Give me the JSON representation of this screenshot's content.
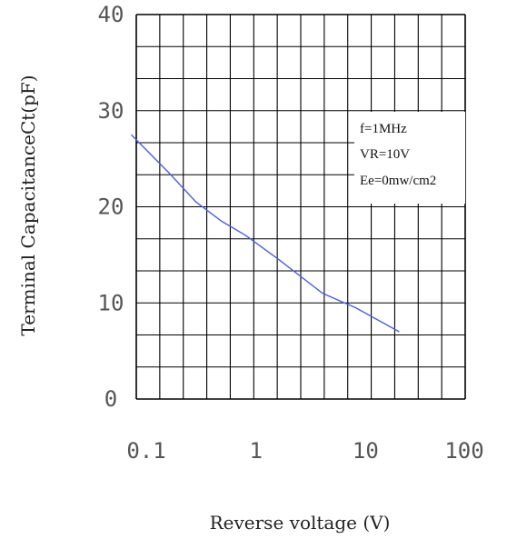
{
  "chart_data": {
    "type": "line",
    "xscale": "log",
    "xlim": [
      0.1,
      100
    ],
    "ylim": [
      0,
      40
    ],
    "grid": true,
    "xlabel": "Reverse voltage (V)",
    "ylabel": "Terminal CapacitanceCt(pF)",
    "x_ticks": [
      "0.1",
      "1",
      "10",
      "100"
    ],
    "y_ticks": [
      "0",
      "10",
      "20",
      "30",
      "40"
    ],
    "annotation": [
      "f=1MHz",
      "VR=10V",
      "Ee=0mw/cm2"
    ],
    "series": [
      {
        "color": "#4a5ee8",
        "x": [
          0.09,
          0.2,
          0.35,
          0.6,
          1,
          2,
          5,
          10,
          25
        ],
        "y": [
          27.5,
          23.5,
          20.5,
          18.5,
          17,
          14.5,
          11,
          9.5,
          7
        ]
      }
    ]
  }
}
